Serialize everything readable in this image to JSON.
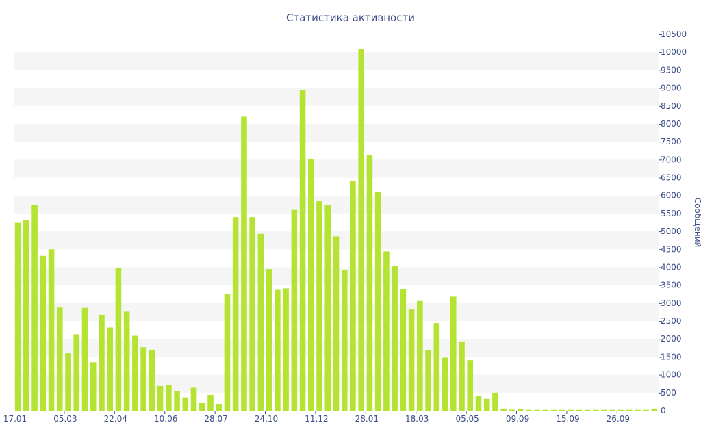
{
  "chart_data": {
    "type": "bar",
    "title": "Статистика активности",
    "xlabel": "",
    "ylabel": "Сообщений",
    "ylim": [
      0,
      10500
    ],
    "y_ticks": [
      0,
      500,
      1000,
      1500,
      2000,
      2500,
      3000,
      3500,
      4000,
      4500,
      5000,
      5500,
      6000,
      6500,
      7000,
      7500,
      8000,
      8500,
      9000,
      9500,
      10000,
      10500
    ],
    "y_axis_side": "right",
    "grid": "alternating horizontal bands",
    "x_tick_labels": [
      {
        "index": 0,
        "label": "17.01"
      },
      {
        "index": 6,
        "label": "05.03"
      },
      {
        "index": 12,
        "label": "22.04"
      },
      {
        "index": 18,
        "label": "10.06"
      },
      {
        "index": 24,
        "label": "28.07"
      },
      {
        "index": 30,
        "label": "24.10"
      },
      {
        "index": 36,
        "label": "11.12"
      },
      {
        "index": 42,
        "label": "28.01"
      },
      {
        "index": 48,
        "label": "18.03"
      },
      {
        "index": 54,
        "label": "05.05"
      },
      {
        "index": 60,
        "label": "09.09"
      },
      {
        "index": 66,
        "label": "15.09"
      },
      {
        "index": 72,
        "label": "26.09"
      }
    ],
    "values": [
      5240,
      5310,
      5730,
      4320,
      4500,
      2880,
      1600,
      2130,
      2870,
      1350,
      2660,
      2320,
      3990,
      2760,
      2090,
      1770,
      1700,
      690,
      710,
      550,
      370,
      640,
      210,
      440,
      170,
      3260,
      5400,
      8200,
      5400,
      4930,
      3950,
      3370,
      3410,
      5600,
      8950,
      7020,
      5840,
      5740,
      4860,
      3930,
      6410,
      10090,
      7130,
      6090,
      4440,
      4030,
      3390,
      2840,
      3060,
      1680,
      2440,
      1480,
      3180,
      1930,
      1410,
      420,
      330,
      500,
      60,
      30,
      40,
      25,
      25,
      25,
      25,
      25,
      25,
      25,
      25,
      25,
      25,
      25,
      25,
      25,
      25,
      25,
      60
    ],
    "colors": {
      "bar": "#b5e332",
      "band": "#f5f5f5",
      "text": "#3c4f86",
      "axis": "#3c4f86"
    }
  }
}
